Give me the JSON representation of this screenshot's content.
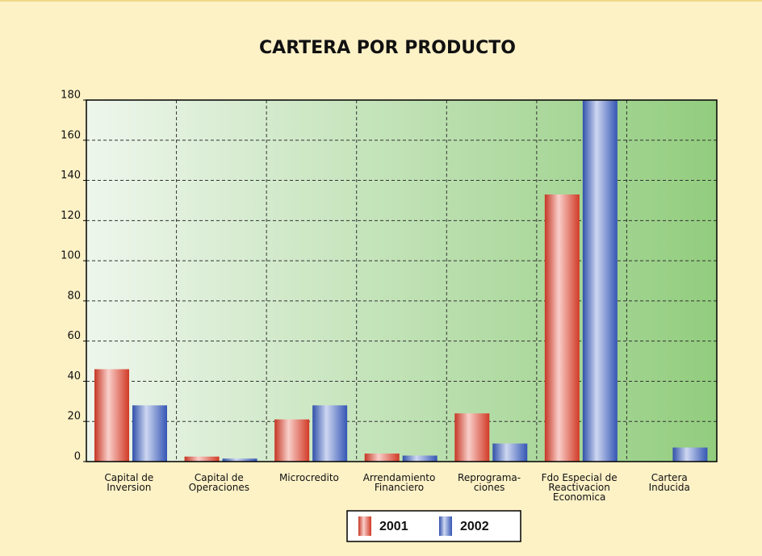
{
  "chart_data": {
    "type": "bar",
    "title": "CARTERA POR PRODUCTO",
    "categories": [
      "Capital de\nInversion",
      "Capital de\nOperaciones",
      "Microcredito",
      "Arrendamiento\nFinanciero",
      "Reprograma-\nciones",
      "Fdo Especial de\nReactivacion\nEconomica",
      "Cartera\nInducida"
    ],
    "series": [
      {
        "name": "2001",
        "color": "#e8402a",
        "values": [
          46,
          2.5,
          21,
          4,
          24,
          133,
          0
        ]
      },
      {
        "name": "2002",
        "color": "#3a5fc8",
        "values": [
          28,
          1.5,
          28,
          3,
          9,
          180,
          7
        ]
      }
    ],
    "ylim": [
      0,
      180
    ],
    "yticks": [
      0,
      20,
      40,
      60,
      80,
      100,
      120,
      140,
      160,
      180
    ],
    "grid": true,
    "legend": "bottom"
  }
}
